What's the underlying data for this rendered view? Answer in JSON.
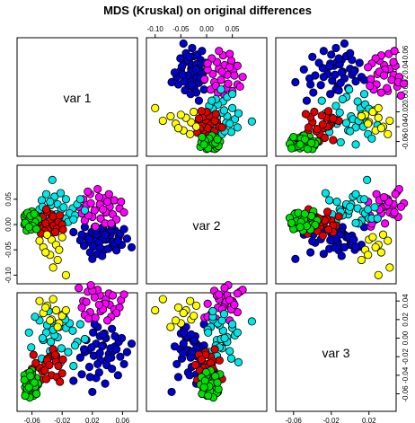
{
  "chart_data": {
    "type": "scatter",
    "title": "MDS (Kruskal) on original differences",
    "subtitle": "",
    "xlabel": "",
    "ylabel": "",
    "grid": false,
    "legend": "none",
    "variables": [
      "var 1",
      "var 2",
      "var 3"
    ],
    "ranges": {
      "var 1": [
        -0.075,
        0.075
      ],
      "var 2": [
        -0.11,
        0.11
      ],
      "var 3": [
        -0.075,
        0.045
      ]
    },
    "ticks": {
      "var 1": [
        -0.06,
        -0.02,
        0.02,
        0.06
      ],
      "var 2": [
        -0.1,
        -0.05,
        0.0,
        0.05
      ],
      "var 3": [
        -0.06,
        -0.02,
        0.02
      ]
    },
    "tick_labels": {
      "var 1": [
        "-0.06",
        "-0.02",
        "0.02",
        "0.06"
      ],
      "var 2": [
        "-0.10",
        "-0.05",
        "0.00",
        "0.05"
      ],
      "var 3": [
        "-0.06",
        "-0.02",
        "0.02"
      ]
    },
    "right_axis_ticks": {
      "var 1": [
        -0.06,
        -0.04,
        -0.02,
        0.0,
        0.02,
        0.04,
        0.06
      ],
      "var 3": [
        -0.06,
        -0.04,
        -0.02,
        0.0,
        0.02,
        0.04
      ]
    },
    "right_axis_labels": {
      "var 1": [
        "-0.06",
        "-0.04",
        "-0.02",
        "0.00",
        "0.02",
        "0.04",
        "0.06"
      ],
      "var 3": [
        "-0.06",
        "-0.04",
        "-0.02",
        "0.00",
        "0.02",
        "0.04"
      ]
    },
    "colors": {
      "blue": "#0000cd",
      "magenta": "#ff00ff",
      "cyan": "#00e5e5",
      "red": "#e00000",
      "green": "#00e000",
      "yellow": "#ffff00"
    },
    "series": [
      {
        "color": "blue",
        "points": [
          [
            0.038,
            -0.03,
            0.0
          ],
          [
            0.03,
            -0.022,
            0.002
          ],
          [
            0.046,
            -0.044,
            0.01
          ],
          [
            0.025,
            -0.02,
            -0.006
          ],
          [
            0.05,
            -0.012,
            -0.009
          ],
          [
            0.015,
            -0.035,
            -0.013
          ],
          [
            0.034,
            -0.005,
            -0.008
          ],
          [
            0.027,
            -0.04,
            0.012
          ],
          [
            0.042,
            -0.028,
            -0.017
          ],
          [
            0.019,
            -0.015,
            -0.01
          ],
          [
            0.055,
            -0.025,
            -0.004
          ],
          [
            0.036,
            -0.05,
            0.005
          ],
          [
            0.022,
            -0.032,
            -0.019
          ],
          [
            0.047,
            -0.034,
            -0.014
          ],
          [
            0.012,
            -0.024,
            -0.002
          ],
          [
            0.031,
            -0.01,
            -0.024
          ],
          [
            0.059,
            -0.04,
            0.0
          ],
          [
            0.044,
            -0.02,
            -0.011
          ],
          [
            0.01,
            -0.005,
            -0.015
          ],
          [
            0.027,
            -0.058,
            -0.028
          ],
          [
            0.05,
            -0.037,
            0.002
          ],
          [
            0.039,
            -0.016,
            -0.029
          ],
          [
            0.021,
            -0.044,
            0.006
          ],
          [
            0.034,
            -0.03,
            0.004
          ],
          [
            0.057,
            -0.018,
            -0.02
          ],
          [
            0.016,
            -0.029,
            -0.031
          ],
          [
            0.045,
            -0.01,
            -0.021
          ],
          [
            0.029,
            -0.036,
            -0.037
          ],
          [
            0.041,
            -0.048,
            -0.022
          ],
          [
            0.006,
            -0.02,
            -0.039
          ],
          [
            0.025,
            -0.012,
            -0.043
          ],
          [
            0.066,
            -0.028,
            -0.015
          ],
          [
            0.052,
            -0.051,
            -0.012
          ],
          [
            0.033,
            -0.062,
            -0.009
          ],
          [
            0.009,
            -0.042,
            -0.012
          ],
          [
            -0.005,
            -0.015,
            -0.046
          ],
          [
            0.046,
            -0.002,
            -0.033
          ],
          [
            0.03,
            -0.046,
            -0.016
          ],
          [
            0.017,
            -0.055,
            -0.042
          ],
          [
            0.062,
            -0.009,
            -0.028
          ],
          [
            0.037,
            -0.02,
            -0.049
          ],
          [
            0.004,
            -0.031,
            -0.021
          ],
          [
            0.02,
            -0.068,
            -0.058
          ],
          [
            0.054,
            -0.033,
            -0.04
          ],
          [
            0.023,
            -0.005,
            0.015
          ],
          [
            0.072,
            -0.045,
            -0.006
          ]
        ]
      },
      {
        "color": "magenta",
        "points": [
          [
            0.008,
            0.05,
            0.04
          ],
          [
            0.017,
            0.06,
            0.028
          ],
          [
            0.03,
            0.04,
            0.046
          ],
          [
            0.036,
            0.052,
            0.038
          ],
          [
            0.023,
            0.028,
            0.044
          ],
          [
            0.043,
            0.035,
            0.036
          ],
          [
            0.014,
            0.065,
            0.05
          ],
          [
            0.049,
            0.048,
            0.031
          ],
          [
            0.027,
            0.07,
            0.052
          ],
          [
            0.038,
            0.024,
            0.042
          ],
          [
            0.012,
            0.038,
            0.039
          ],
          [
            0.056,
            0.032,
            0.033
          ],
          [
            0.02,
            0.015,
            0.051
          ],
          [
            0.042,
            0.06,
            0.048
          ],
          [
            0.031,
            0.012,
            0.029
          ],
          [
            0.047,
            0.02,
            0.046
          ],
          [
            0.006,
            0.022,
            0.033
          ],
          [
            0.037,
            0.002,
            0.037
          ],
          [
            0.052,
            0.01,
            0.027
          ],
          [
            0.018,
            0.042,
            0.057
          ],
          [
            0.024,
            -0.004,
            0.022
          ],
          [
            0.058,
            0.045,
            0.041
          ],
          [
            0.01,
            0.008,
            0.025
          ],
          [
            0.034,
            0.03,
            0.031
          ],
          [
            0.045,
            0.002,
            0.023
          ],
          [
            0.062,
            0.024,
            0.047
          ],
          [
            0.002,
            0.035,
            0.054
          ],
          [
            0.029,
            0.054,
            0.036
          ],
          [
            0.04,
            0.045,
            0.019
          ],
          [
            0.015,
            0.018,
            0.021
          ]
        ]
      },
      {
        "color": "cyan",
        "points": [
          [
            -0.026,
            0.04,
            0.001
          ],
          [
            -0.015,
            0.05,
            0.011
          ],
          [
            -0.035,
            0.038,
            -0.004
          ],
          [
            -0.006,
            0.032,
            0.008
          ],
          [
            -0.04,
            0.025,
            0.014
          ],
          [
            -0.021,
            0.03,
            -0.011
          ],
          [
            -0.01,
            0.022,
            0.016
          ],
          [
            -0.03,
            0.055,
            0.003
          ],
          [
            -0.045,
            0.02,
            -0.002
          ],
          [
            -0.016,
            0.012,
            0.02
          ],
          [
            0.0,
            0.04,
            -0.004
          ],
          [
            -0.036,
            0.045,
            -0.014
          ],
          [
            -0.024,
            0.008,
            0.012
          ],
          [
            -0.05,
            0.03,
            0.019
          ],
          [
            -0.003,
            0.018,
            -0.008
          ],
          [
            -0.041,
            0.06,
            0.006
          ],
          [
            -0.012,
            0.005,
            -0.015
          ],
          [
            -0.056,
            0.012,
            0.023
          ],
          [
            -0.028,
            0.02,
            -0.019
          ],
          [
            0.004,
            0.05,
            0.015
          ],
          [
            -0.018,
            0.034,
            0.026
          ],
          [
            -0.047,
            0.048,
            -0.022
          ],
          [
            -0.032,
            0.002,
            0.009
          ],
          [
            -0.061,
            0.025,
            -0.01
          ],
          [
            0.01,
            0.028,
            -0.001
          ],
          [
            -0.038,
            0.012,
            0.029
          ],
          [
            -0.022,
            0.062,
            -0.026
          ],
          [
            -0.033,
            0.088,
            0.018
          ],
          [
            -0.064,
            0.003,
            0.006
          ],
          [
            -0.005,
            0.01,
            -0.03
          ],
          [
            -0.046,
            0.035,
            0.0
          ]
        ]
      },
      {
        "color": "red",
        "points": [
          [
            -0.036,
            0.008,
            -0.02
          ],
          [
            -0.042,
            0.002,
            -0.028
          ],
          [
            -0.028,
            0.012,
            -0.025
          ],
          [
            -0.05,
            -0.005,
            -0.032
          ],
          [
            -0.031,
            -0.002,
            -0.015
          ],
          [
            -0.046,
            0.015,
            -0.036
          ],
          [
            -0.025,
            0.005,
            -0.03
          ],
          [
            -0.039,
            -0.01,
            -0.022
          ],
          [
            -0.055,
            0.008,
            -0.027
          ],
          [
            -0.034,
            0.02,
            -0.04
          ],
          [
            -0.043,
            -0.013,
            -0.035
          ],
          [
            -0.027,
            -0.008,
            -0.042
          ],
          [
            -0.058,
            -0.002,
            -0.018
          ],
          [
            -0.04,
            0.025,
            -0.024
          ],
          [
            -0.02,
            0.0,
            -0.038
          ],
          [
            -0.048,
            -0.018,
            -0.045
          ],
          [
            -0.032,
            0.016,
            -0.012
          ],
          [
            -0.06,
            0.012,
            -0.033
          ],
          [
            -0.037,
            -0.022,
            -0.029
          ],
          [
            -0.023,
            0.018,
            -0.047
          ],
          [
            -0.052,
            0.004,
            -0.05
          ],
          [
            -0.029,
            -0.015,
            -0.018
          ],
          [
            -0.064,
            -0.005,
            -0.04
          ],
          [
            -0.041,
            0.03,
            -0.044
          ],
          [
            -0.019,
            -0.01,
            -0.023
          ]
        ]
      },
      {
        "color": "green",
        "points": [
          [
            -0.06,
            0.008,
            -0.035
          ],
          [
            -0.063,
            0.003,
            -0.041
          ],
          [
            -0.058,
            0.012,
            -0.046
          ],
          [
            -0.066,
            -0.002,
            -0.038
          ],
          [
            -0.061,
            0.015,
            -0.05
          ],
          [
            -0.068,
            0.006,
            -0.044
          ],
          [
            -0.056,
            -0.004,
            -0.048
          ],
          [
            -0.064,
            0.018,
            -0.052
          ],
          [
            -0.07,
            0.0,
            -0.04
          ],
          [
            -0.059,
            0.009,
            -0.055
          ],
          [
            -0.066,
            -0.008,
            -0.047
          ],
          [
            -0.054,
            0.014,
            -0.043
          ],
          [
            -0.062,
            0.022,
            -0.058
          ],
          [
            -0.069,
            0.011,
            -0.053
          ],
          [
            -0.057,
            -0.006,
            -0.056
          ],
          [
            -0.064,
            0.004,
            -0.06
          ],
          [
            -0.06,
            0.026,
            -0.039
          ],
          [
            -0.067,
            -0.012,
            -0.05
          ],
          [
            -0.055,
            0.019,
            -0.054
          ],
          [
            -0.063,
            -0.001,
            -0.037
          ],
          [
            -0.07,
            0.016,
            -0.045
          ],
          [
            -0.058,
            0.001,
            -0.062
          ],
          [
            -0.065,
            0.007,
            -0.057
          ],
          [
            -0.052,
            0.01,
            -0.049
          ],
          [
            -0.061,
            -0.01,
            -0.042
          ],
          [
            -0.068,
            0.02,
            -0.059
          ],
          [
            -0.056,
            0.005,
            -0.052
          ],
          [
            -0.063,
            0.013,
            -0.064
          ],
          [
            -0.059,
            -0.003,
            -0.046
          ],
          [
            -0.066,
            0.023,
            -0.055
          ],
          [
            -0.062,
            0.017,
            -0.041
          ],
          [
            -0.054,
            -0.009,
            -0.06
          ],
          [
            -0.069,
            0.003,
            -0.062
          ],
          [
            -0.057,
            0.021,
            -0.048
          ],
          [
            -0.064,
            -0.005,
            -0.053
          ]
        ]
      },
      {
        "color": "yellow",
        "points": [
          [
            -0.034,
            -0.03,
            0.02
          ],
          [
            -0.028,
            -0.04,
            0.03
          ],
          [
            -0.04,
            -0.02,
            0.035
          ],
          [
            -0.024,
            -0.05,
            0.016
          ],
          [
            -0.032,
            -0.085,
            0.042
          ],
          [
            -0.045,
            -0.045,
            0.027
          ],
          [
            -0.02,
            -0.025,
            0.024
          ],
          [
            -0.036,
            -0.06,
            0.019
          ],
          [
            -0.015,
            -0.1,
            0.03
          ],
          [
            -0.05,
            -0.032,
            0.04
          ],
          [
            -0.026,
            -0.07,
            0.012
          ],
          [
            -0.042,
            -0.055,
            0.033
          ]
        ]
      }
    ]
  }
}
